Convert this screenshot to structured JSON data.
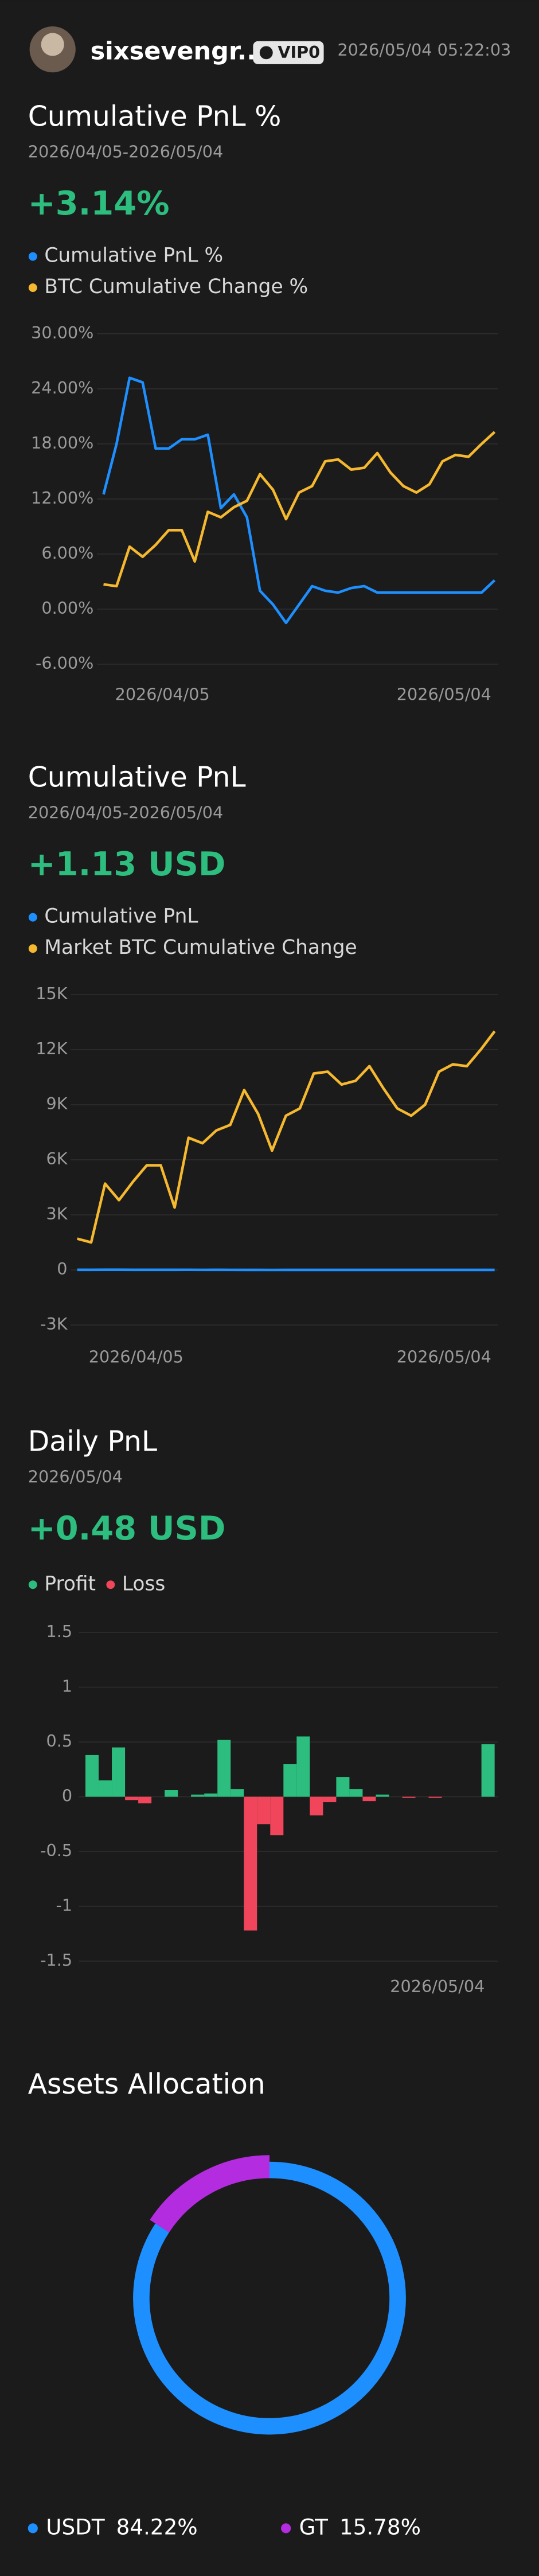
{
  "header": {
    "username": "sixsevengr...",
    "badge": "VIP0",
    "datetime": "2026/05/04 05:22:03"
  },
  "chart_data": [
    {
      "type": "line",
      "title": "Cumulative PnL %",
      "subtitle": "2026/04/05-2026/05/04",
      "headline": "+3.14%",
      "categories": [
        "2026/04/05",
        null,
        null,
        null,
        null,
        null,
        null,
        null,
        null,
        null,
        null,
        null,
        null,
        null,
        null,
        null,
        null,
        null,
        null,
        null,
        null,
        null,
        null,
        null,
        null,
        null,
        null,
        null,
        null,
        null,
        "2026/05/04"
      ],
      "series": [
        {
          "name": "Cumulative PnL %",
          "color": "#1e8fff",
          "values": [
            12.5,
            18,
            25.2,
            24.7,
            17.5,
            17.5,
            18.5,
            18.5,
            19,
            11,
            12.5,
            10,
            2,
            0.5,
            -1.5,
            0.5,
            2.5,
            2,
            1.8,
            2.3,
            2.5,
            1.8,
            1.8,
            1.8,
            1.8,
            1.8,
            1.8,
            1.8,
            1.8,
            1.8,
            3.14
          ]
        },
        {
          "name": "BTC Cumulative Change %",
          "color": "#f5b82e",
          "values": [
            2.7,
            2.5,
            6.8,
            5.7,
            7,
            8.6,
            8.6,
            5.2,
            10.6,
            10,
            11.1,
            11.8,
            14.7,
            13,
            9.8,
            12.7,
            13.4,
            16.1,
            16.3,
            15.2,
            15.4,
            17,
            14.9,
            13.4,
            12.7,
            13.6,
            16.1,
            16.8,
            16.6,
            18,
            19.3
          ]
        }
      ],
      "ylim": [
        -6,
        30
      ],
      "yticks": [
        {
          "value": 30,
          "label": "30.00%"
        },
        {
          "value": 24,
          "label": "24.00%"
        },
        {
          "value": 18,
          "label": "18.00%"
        },
        {
          "value": 12,
          "label": "12.00%"
        },
        {
          "value": 6,
          "label": "6.00%"
        },
        {
          "value": 0,
          "label": "0.00%"
        },
        {
          "value": -6,
          "label": "-6.00%"
        }
      ],
      "grid": true
    },
    {
      "type": "line",
      "title": "Cumulative PnL",
      "subtitle": "2026/04/05-2026/05/04",
      "headline": "+1.13 USD",
      "categories": [
        "2026/04/05",
        null,
        null,
        null,
        null,
        null,
        null,
        null,
        null,
        null,
        null,
        null,
        null,
        null,
        null,
        null,
        null,
        null,
        null,
        null,
        null,
        null,
        null,
        null,
        null,
        null,
        null,
        null,
        null,
        null,
        "2026/05/04"
      ],
      "series": [
        {
          "name": "Cumulative PnL",
          "color": "#1e8fff",
          "values": [
            4.5,
            6.5,
            9.1,
            8.9,
            6.3,
            6.3,
            6.7,
            6.7,
            6.8,
            4,
            4.5,
            3.6,
            0.7,
            0.2,
            -0.5,
            0.2,
            0.9,
            0.7,
            0.65,
            0.8,
            0.9,
            0.65,
            0.65,
            0.65,
            0.65,
            0.65,
            0.65,
            0.65,
            0.65,
            0.65,
            1.13
          ]
        },
        {
          "name": "Market BTC Cumulative Change",
          "color": "#f5b82e",
          "values": [
            1700,
            1500,
            4700,
            3800,
            4800,
            5700,
            5700,
            3400,
            7200,
            6900,
            7600,
            7900,
            9800,
            8500,
            6500,
            8400,
            8800,
            10700,
            10800,
            10100,
            10300,
            11100,
            9900,
            8800,
            8400,
            9000,
            10800,
            11200,
            11100,
            12000,
            13000
          ]
        }
      ],
      "ylim": [
        -3000,
        15000
      ],
      "yticks": [
        {
          "value": 15000,
          "label": "15K"
        },
        {
          "value": 12000,
          "label": "12K"
        },
        {
          "value": 9000,
          "label": "9K"
        },
        {
          "value": 6000,
          "label": "6K"
        },
        {
          "value": 3000,
          "label": "3K"
        },
        0,
        {
          "value": -3000,
          "label": "-3K"
        }
      ],
      "grid": true
    },
    {
      "type": "bar",
      "title": "Daily PnL",
      "subtitle": "2026/05/04",
      "headline": "+0.48 USD",
      "legend": [
        "Profit",
        "Loss"
      ],
      "positive_color": "#2dbd7f",
      "negative_color": "#f0455a",
      "categories": [
        null,
        null,
        null,
        null,
        null,
        null,
        null,
        null,
        null,
        null,
        null,
        null,
        null,
        null,
        null,
        null,
        null,
        null,
        null,
        null,
        null,
        null,
        null,
        null,
        null,
        null,
        null,
        null,
        null,
        null,
        "2026/05/04"
      ],
      "values": [
        0.38,
        0.15,
        0.45,
        -0.03,
        -0.06,
        0,
        0.06,
        0,
        0.02,
        0.03,
        0.52,
        0.07,
        -1.22,
        -0.25,
        -0.35,
        0.3,
        0.55,
        -0.17,
        -0.05,
        0.18,
        0.07,
        -0.04,
        0.02,
        0,
        -0.01,
        0,
        -0.01,
        0,
        0,
        0,
        0.48
      ],
      "ylim": [
        -1.5,
        1.5
      ],
      "yticks": [
        1.5,
        1,
        0.5,
        0,
        -0.5,
        -1,
        -1.5
      ],
      "grid": true
    },
    {
      "type": "pie",
      "title": "Assets Allocation",
      "categories": [
        "USDT",
        "GT"
      ],
      "values": [
        84.22,
        15.78
      ],
      "value_labels": [
        "84.22%",
        "15.78%"
      ],
      "colors": [
        "#1e8fff",
        "#b42ce0"
      ]
    }
  ]
}
